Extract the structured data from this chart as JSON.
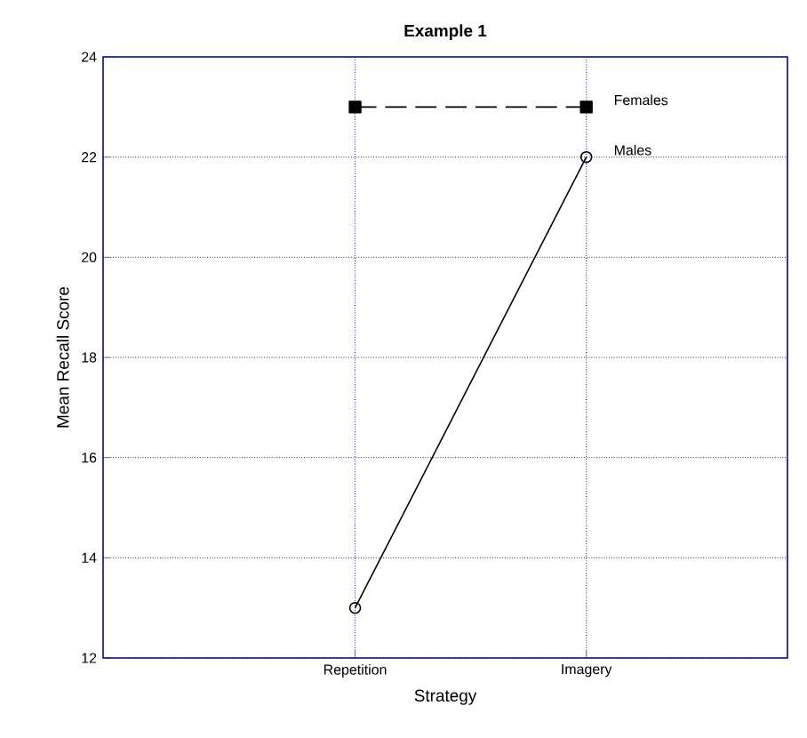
{
  "chart_data": {
    "type": "line",
    "title": "Example 1",
    "xlabel": "Strategy",
    "ylabel": "Mean Recall Score",
    "categories": [
      "Repetition",
      "Imagery"
    ],
    "series": [
      {
        "name": "Females",
        "color": "#000000",
        "values": [
          23,
          23
        ],
        "marker": "square",
        "line_style": "dashed"
      },
      {
        "name": "Males",
        "color": "#000000",
        "values": [
          13,
          22
        ],
        "marker": "circle",
        "line_style": "solid"
      }
    ],
    "ylim": [
      12,
      24
    ],
    "yticks": [
      12,
      14,
      16,
      18,
      20,
      22,
      24
    ],
    "grid": true,
    "legend": false
  }
}
